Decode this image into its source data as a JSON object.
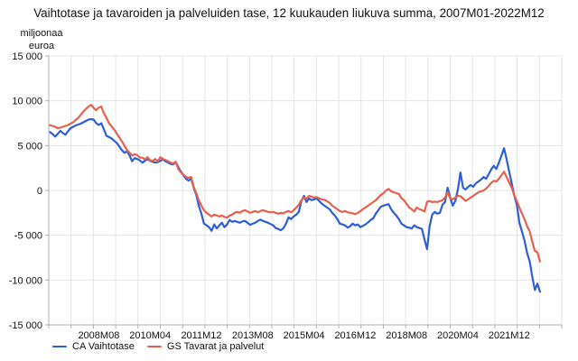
{
  "chart_data": {
    "type": "line",
    "title": "Vaihtotase ja tavaroiden ja palveluiden tase, 12 kuukauden liukuva summa, 2007M01-2022M12",
    "unit_label_lines": [
      "miljoonaa",
      "euroa"
    ],
    "x_domain": {
      "start": "2007M01",
      "end": "2022M12",
      "frequency": "monthly",
      "n_points": 192
    },
    "y_axis": {
      "min": -15000,
      "max": 15000,
      "tick_step": 5000,
      "tick_labels": [
        "15 000",
        "10 000",
        "5 000",
        "0",
        "-5 000",
        "-10 000",
        "-15 000"
      ]
    },
    "x_ticks": [
      {
        "label": "2008M08",
        "month_index": 19
      },
      {
        "label": "2010M04",
        "month_index": 39
      },
      {
        "label": "2011M12",
        "month_index": 59
      },
      {
        "label": "2013M08",
        "month_index": 79
      },
      {
        "label": "2015M04",
        "month_index": 99
      },
      {
        "label": "2016M12",
        "month_index": 119
      },
      {
        "label": "2018M08",
        "month_index": 139
      },
      {
        "label": "2020M04",
        "month_index": 159
      },
      {
        "label": "2021M12",
        "month_index": 179
      }
    ],
    "grid": {
      "color": "#e4e4e4",
      "axis_color": "#b0b0b0",
      "vertical_divisions": 23
    },
    "legend_position": "bottom-left",
    "series": [
      {
        "name": "CA Vaihtotase",
        "color": "#2e5ed6",
        "values": [
          6500,
          6280,
          6000,
          6300,
          6650,
          6400,
          6200,
          6600,
          6950,
          7100,
          7250,
          7350,
          7450,
          7600,
          7750,
          7900,
          7950,
          7900,
          7500,
          7300,
          7500,
          6800,
          6100,
          5950,
          5800,
          5550,
          5300,
          4900,
          4500,
          4200,
          4350,
          3900,
          3250,
          3600,
          3500,
          3350,
          3100,
          3300,
          3500,
          3300,
          3200,
          3100,
          3150,
          3300,
          3450,
          3250,
          3100,
          2950,
          2900,
          3150,
          2600,
          2100,
          1700,
          1300,
          1100,
          1300,
          300,
          -500,
          -1700,
          -2600,
          -3700,
          -3900,
          -4100,
          -4500,
          -3800,
          -4250,
          -3900,
          -3600,
          -4100,
          -3800,
          -3300,
          -3500,
          -3400,
          -3500,
          -3600,
          -3450,
          -3400,
          -3600,
          -3850,
          -3700,
          -3600,
          -3400,
          -3250,
          -3400,
          -3500,
          -3600,
          -3750,
          -3900,
          -4200,
          -4300,
          -4450,
          -4200,
          -3700,
          -3000,
          -3200,
          -2900,
          -2700,
          -2400,
          -1200,
          -600,
          -1300,
          -900,
          -1100,
          -1000,
          -900,
          -1200,
          -1500,
          -1700,
          -1900,
          -2100,
          -2500,
          -2800,
          -3200,
          -3700,
          -3800,
          -3900,
          -4150,
          -4000,
          -3700,
          -3900,
          -3800,
          -4100,
          -3950,
          -3800,
          -3550,
          -3300,
          -3100,
          -2600,
          -2200,
          -1800,
          -1700,
          -1600,
          -1540,
          -2100,
          -2500,
          -2800,
          -3200,
          -3700,
          -3900,
          -4100,
          -4150,
          -4250,
          -3900,
          -4100,
          -4200,
          -4300,
          -5500,
          -6550,
          -4000,
          -2700,
          -2400,
          -2600,
          -2500,
          -1600,
          -1300,
          300,
          -800,
          -1700,
          -1200,
          100,
          2000,
          300,
          100,
          400,
          600,
          400,
          800,
          1000,
          1200,
          1500,
          1300,
          1800,
          2350,
          2750,
          2400,
          3100,
          3900,
          4700,
          3500,
          2100,
          800,
          -600,
          -1600,
          -3600,
          -4600,
          -5600,
          -7000,
          -7900,
          -9600,
          -11100,
          -10400,
          -11300
        ]
      },
      {
        "name": "GS Tavarat ja palvelut",
        "color": "#e8604c",
        "values": [
          7280,
          7200,
          7100,
          6950,
          7000,
          7100,
          7200,
          7300,
          7450,
          7600,
          7850,
          8100,
          8450,
          8800,
          9100,
          9350,
          9550,
          9200,
          8950,
          9250,
          9350,
          8600,
          8100,
          7500,
          7150,
          6800,
          6350,
          5900,
          5500,
          5000,
          4500,
          4200,
          3900,
          4050,
          3940,
          3650,
          3650,
          3450,
          3700,
          3350,
          3300,
          3500,
          3250,
          3700,
          3500,
          3400,
          3250,
          3100,
          3000,
          3200,
          2400,
          2000,
          1750,
          1500,
          1400,
          1500,
          400,
          -300,
          -1100,
          -1700,
          -2200,
          -2500,
          -2700,
          -2900,
          -2700,
          -2800,
          -2900,
          -2800,
          -2950,
          -3050,
          -2800,
          -2700,
          -2500,
          -2400,
          -2500,
          -2300,
          -2200,
          -2350,
          -2500,
          -2400,
          -2300,
          -2450,
          -2300,
          -2200,
          -2300,
          -2400,
          -2450,
          -2400,
          -2500,
          -2600,
          -2500,
          -2550,
          -2400,
          -2300,
          -2450,
          -2200,
          -1900,
          -1600,
          -1100,
          -800,
          -900,
          -600,
          -700,
          -800,
          -750,
          -900,
          -1000,
          -1050,
          -1200,
          -1400,
          -1700,
          -1900,
          -2100,
          -2300,
          -2400,
          -2300,
          -2450,
          -2500,
          -2550,
          -2650,
          -2500,
          -2300,
          -2100,
          -1900,
          -1700,
          -1500,
          -1300,
          -1100,
          -800,
          -500,
          -300,
          0,
          170,
          -100,
          -200,
          -300,
          -400,
          -870,
          -1100,
          -1500,
          -1900,
          -2100,
          -2350,
          -1900,
          -2100,
          -2200,
          -2350,
          -1250,
          -1200,
          -1300,
          -1250,
          -1300,
          -1200,
          -1100,
          -800,
          -200,
          -900,
          -1000,
          -800,
          -600,
          -650,
          -900,
          -1170,
          -1000,
          -800,
          -600,
          -400,
          -200,
          -100,
          0,
          200,
          500,
          840,
          1070,
          1000,
          1300,
          1700,
          2080,
          1500,
          900,
          300,
          -540,
          -1200,
          -1900,
          -2600,
          -3220,
          -4000,
          -4560,
          -5700,
          -6740,
          -6900,
          -7920
        ]
      }
    ]
  }
}
